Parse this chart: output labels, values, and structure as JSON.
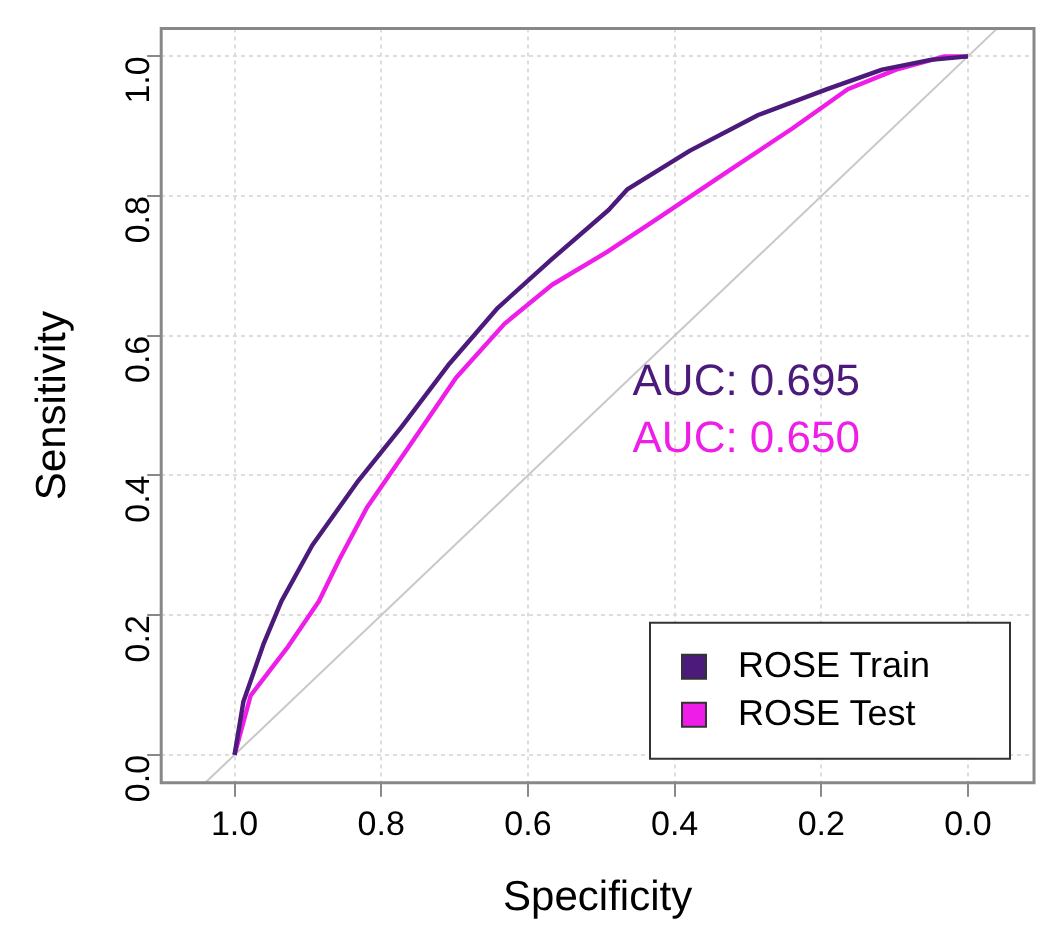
{
  "chart_data": {
    "type": "line",
    "xlabel": "Specificity",
    "ylabel": "Sensitivity",
    "xlim": [
      1.1,
      -0.09
    ],
    "ylim": [
      -0.04,
      1.04
    ],
    "xticks": [
      {
        "value": 1,
        "label": "1.0"
      },
      0.8,
      0.6,
      0.4,
      0.2,
      {
        "value": 0,
        "label": "0.0"
      }
    ],
    "yticks": [
      {
        "value": 0,
        "label": "0.0"
      },
      0.2,
      0.4,
      0.6,
      0.8,
      {
        "value": 1,
        "label": "1.0"
      }
    ],
    "grid": true,
    "legend": "bottom right",
    "marker": "none",
    "line_style": "solid",
    "annotations": [
      "AUC: 0.695",
      "AUC: 0.650"
    ],
    "series": [
      {
        "name": "ROSE Train",
        "color": "#4b1a7a",
        "x": [
          1.0,
          0.988,
          0.96,
          0.936,
          0.894,
          0.833,
          0.772,
          0.707,
          0.641,
          0.567,
          0.49,
          0.464,
          0.379,
          0.286,
          0.192,
          0.117,
          0.051,
          0.0
        ],
        "values": [
          0.0,
          0.076,
          0.16,
          0.22,
          0.3,
          0.39,
          0.47,
          0.56,
          0.64,
          0.71,
          0.78,
          0.81,
          0.865,
          0.916,
          0.953,
          0.981,
          0.995,
          1.0
        ]
      },
      {
        "name": "ROSE Test",
        "color": "#ee1ee8",
        "x": [
          1.0,
          0.978,
          0.927,
          0.885,
          0.857,
          0.819,
          0.763,
          0.698,
          0.632,
          0.567,
          0.492,
          0.426,
          0.332,
          0.239,
          0.164,
          0.098,
          0.032,
          0.0
        ],
        "values": [
          0.0,
          0.085,
          0.155,
          0.22,
          0.28,
          0.355,
          0.44,
          0.54,
          0.617,
          0.673,
          0.72,
          0.766,
          0.832,
          0.897,
          0.953,
          0.981,
          1.0,
          1.0
        ]
      },
      {
        "color": "#c8c8c8",
        "x": [
          1.04,
          -0.04
        ],
        "values": [
          -0.04,
          1.04
        ]
      }
    ]
  }
}
